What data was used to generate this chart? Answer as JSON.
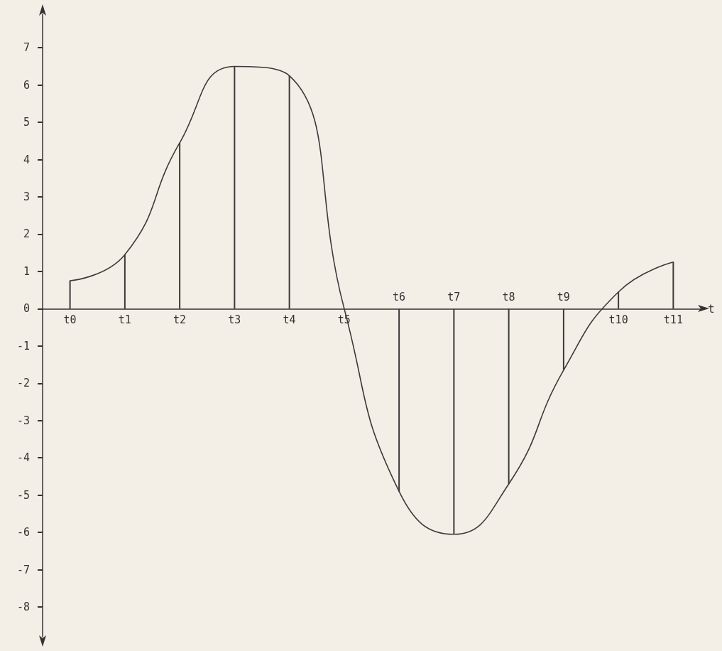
{
  "chart_data": {
    "type": "line",
    "xlabel": "t",
    "categories": [
      "t0",
      "t1",
      "t2",
      "t3",
      "t4",
      "t5",
      "t6",
      "t7",
      "t8",
      "t9",
      "t10",
      "t11"
    ],
    "ylim": [
      -8.8,
      7.9
    ],
    "yticks": [
      -8,
      -7,
      -6,
      -5,
      -4,
      -3,
      -2,
      -1,
      0,
      1,
      2,
      3,
      4,
      5,
      6,
      7
    ],
    "grid": false,
    "marker": "none",
    "line_style": "solid",
    "series": [
      {
        "color": "#3a3a3a",
        "values": [
          0.75,
          1.45,
          4.45,
          6.5,
          6.25,
          0,
          -4.9,
          -6.05,
          -4.7,
          -1.65,
          0.45,
          1.25
        ]
      },
      {
        "type": "bar",
        "color": "#3a3a3a",
        "values": [
          0.75,
          1.45,
          4.45,
          6.5,
          6.25,
          0,
          -4.9,
          -6.05,
          -4.7,
          -1.65,
          0.45,
          1.25
        ]
      }
    ]
  }
}
